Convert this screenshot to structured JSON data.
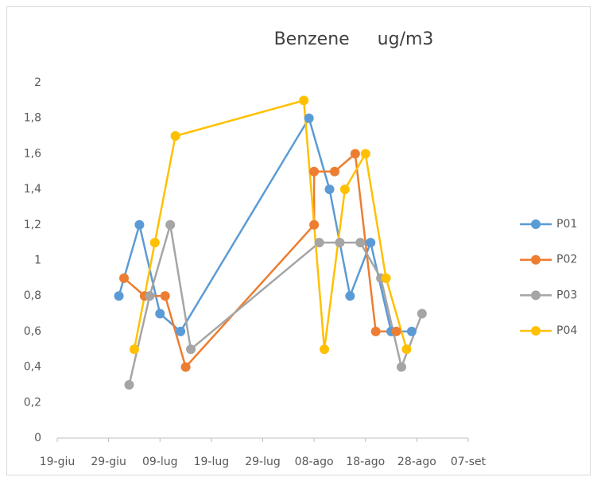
{
  "chart_data": {
    "type": "line",
    "title": "Benzene     ug/m3",
    "xlim": [
      0,
      80
    ],
    "xticks": [
      {
        "value": 0,
        "label": "19-giu"
      },
      {
        "value": 10,
        "label": "29-giu"
      },
      {
        "value": 20,
        "label": "09-lug"
      },
      {
        "value": 30,
        "label": "19-lug"
      },
      {
        "value": 40,
        "label": "29-lug"
      },
      {
        "value": 50,
        "label": "08-ago"
      },
      {
        "value": 60,
        "label": "18-ago"
      },
      {
        "value": 70,
        "label": "28-ago"
      },
      {
        "value": 80,
        "label": "07-set"
      }
    ],
    "ylim": [
      0,
      2
    ],
    "yticks": [
      0,
      {
        "value": 0.2,
        "label": "0,2"
      },
      {
        "value": 0.4,
        "label": "0,4"
      },
      {
        "value": 0.6,
        "label": "0,6"
      },
      {
        "value": 0.8,
        "label": "0,8"
      },
      1,
      {
        "value": 1.2,
        "label": "1,2"
      },
      {
        "value": 1.4,
        "label": "1,4"
      },
      {
        "value": 1.6,
        "label": "1,6"
      },
      {
        "value": 1.8,
        "label": "1,8"
      },
      2
    ],
    "grid": false,
    "legend": "right",
    "series": [
      {
        "name": "P01",
        "color": "#5b9bd5",
        "x": [
          12,
          16,
          20,
          24,
          49,
          53,
          57,
          61,
          65,
          69
        ],
        "values": [
          0.8,
          1.2,
          0.7,
          0.6,
          1.8,
          1.4,
          0.8,
          1.1,
          0.6,
          0.6
        ]
      },
      {
        "name": "P02",
        "color": "#ed7d31",
        "x": [
          13,
          17,
          21,
          25,
          50,
          50,
          54,
          58,
          62,
          66
        ],
        "values": [
          0.9,
          0.8,
          0.8,
          0.4,
          1.2,
          1.5,
          1.5,
          1.6,
          0.6,
          0.6
        ]
      },
      {
        "name": "P03",
        "color": "#a5a5a5",
        "x": [
          14,
          18,
          22,
          26,
          51,
          55,
          59,
          63,
          67,
          71
        ],
        "values": [
          0.3,
          0.8,
          1.2,
          0.5,
          1.1,
          1.1,
          1.1,
          0.9,
          0.4,
          0.7
        ]
      },
      {
        "name": "P04",
        "color": "#ffc000",
        "x": [
          15,
          19,
          23,
          48,
          52,
          56,
          60,
          64,
          68
        ],
        "values": [
          0.5,
          1.1,
          1.7,
          1.9,
          0.5,
          1.4,
          1.6,
          0.9,
          0.5
        ]
      }
    ]
  }
}
